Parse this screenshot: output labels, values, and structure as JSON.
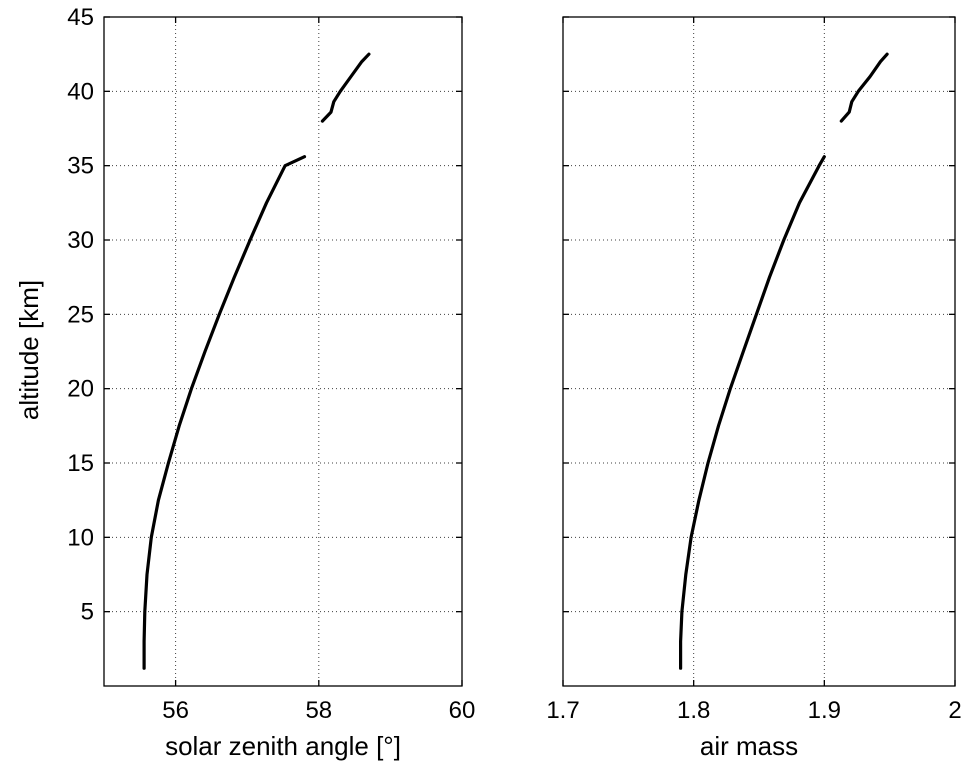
{
  "chart_data": [
    {
      "type": "line",
      "title": "",
      "xlabel": "solar zenith angle [°]",
      "ylabel": "altitude [km]",
      "xlim": [
        55,
        60
      ],
      "ylim": [
        0,
        45
      ],
      "x_ticks": [
        56,
        58,
        60
      ],
      "x_tick_labels": [
        "56",
        "58",
        "60"
      ],
      "y_ticks": [
        5,
        10,
        15,
        20,
        25,
        30,
        35,
        40,
        45
      ],
      "y_tick_labels": [
        "5",
        "10",
        "15",
        "20",
        "25",
        "30",
        "35",
        "40",
        "45"
      ],
      "grid": true,
      "series": [
        {
          "color": "#000000",
          "segments": [
            {
              "x": [
                55.56,
                55.56,
                55.57,
                55.6,
                55.66,
                55.76,
                55.9,
                56.05,
                56.22,
                56.41,
                56.61,
                56.82,
                57.04,
                57.27,
                57.53,
                57.8
              ],
              "y": [
                1.2,
                3,
                5,
                7.5,
                10,
                12.5,
                15,
                17.5,
                20,
                22.5,
                25,
                27.5,
                30,
                32.5,
                35,
                35.6
              ]
            },
            {
              "x": [
                58.05,
                58.17,
                58.21,
                58.3,
                58.45,
                58.6,
                58.7
              ],
              "y": [
                38,
                38.6,
                39.3,
                40,
                41,
                42,
                42.5
              ]
            }
          ]
        }
      ]
    },
    {
      "type": "line",
      "title": "",
      "xlabel": "air mass",
      "ylabel": "",
      "xlim": [
        1.7,
        2.0
      ],
      "ylim": [
        0,
        45
      ],
      "x_ticks": [
        1.7,
        1.8,
        1.9,
        2.0
      ],
      "x_tick_labels": [
        "1.7",
        "1.8",
        "1.9",
        "2"
      ],
      "y_ticks": [
        5,
        10,
        15,
        20,
        25,
        30,
        35,
        40,
        45
      ],
      "y_tick_labels": [],
      "grid": true,
      "series": [
        {
          "color": "#000000",
          "segments": [
            {
              "x": [
                1.79,
                1.79,
                1.791,
                1.794,
                1.798,
                1.804,
                1.811,
                1.819,
                1.828,
                1.838,
                1.848,
                1.858,
                1.869,
                1.881,
                1.896,
                1.9
              ],
              "y": [
                1.2,
                3,
                5,
                7.5,
                10,
                12.5,
                15,
                17.5,
                20,
                22.5,
                25,
                27.5,
                30,
                32.5,
                35,
                35.6
              ]
            },
            {
              "x": [
                1.913,
                1.919,
                1.921,
                1.926,
                1.935,
                1.943,
                1.948
              ],
              "y": [
                38,
                38.6,
                39.3,
                40,
                41,
                42,
                42.5
              ]
            }
          ]
        }
      ]
    }
  ]
}
